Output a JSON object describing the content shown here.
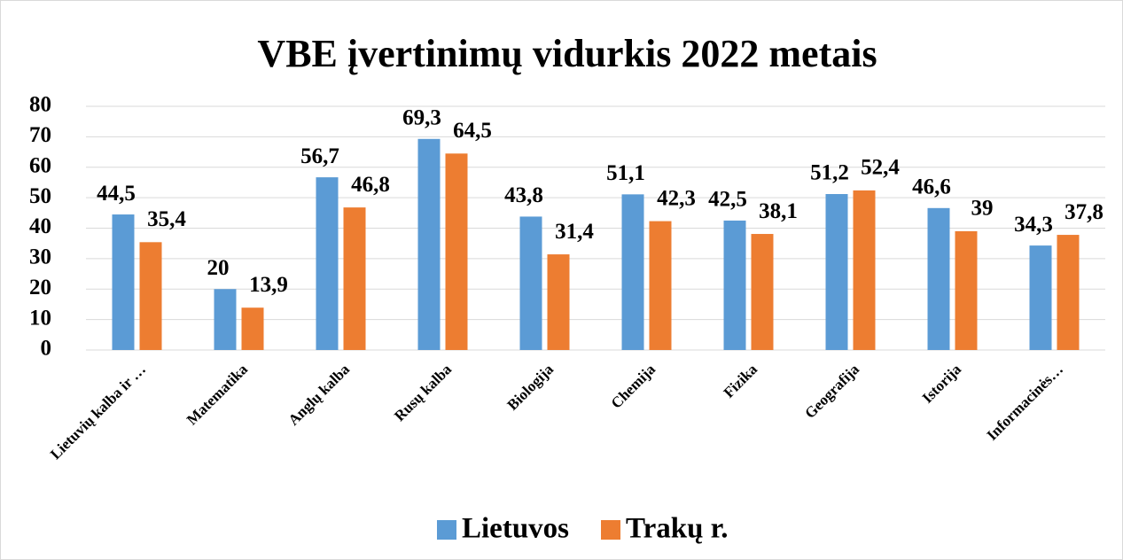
{
  "chart_data": {
    "type": "bar",
    "title": "VBE įvertinimų vidurkis 2022 metais",
    "categories": [
      "Lietuvių kalba ir …",
      "Matematika",
      "Anglų kalba",
      "Rusų kalba",
      "Biologija",
      "Chemija",
      "Fizika",
      "Geografija",
      "Istorija",
      "Informacinės…"
    ],
    "series": [
      {
        "name": "Lietuvos",
        "color": "#5b9bd5",
        "values": [
          44.5,
          20,
          56.7,
          69.3,
          43.8,
          51.1,
          42.5,
          51.2,
          46.6,
          34.3
        ],
        "value_labels": [
          "44,5",
          "20",
          "56,7",
          "69,3",
          "43,8",
          "51,1",
          "42,5",
          "51,2",
          "46,6",
          "34,3"
        ]
      },
      {
        "name": "Trakų r.",
        "color": "#ed7d31",
        "values": [
          35.4,
          13.9,
          46.8,
          64.5,
          31.4,
          42.3,
          38.1,
          52.4,
          39,
          37.8
        ],
        "value_labels": [
          "35,4",
          "13,9",
          "46,8",
          "64,5",
          "31,4",
          "42,3",
          "38,1",
          "52,4",
          "39",
          "37,8"
        ]
      }
    ],
    "ylim": [
      0,
      80
    ],
    "yticks": [
      0,
      10,
      20,
      30,
      40,
      50,
      60,
      70,
      80
    ],
    "grid": true,
    "legend": "bottom"
  }
}
